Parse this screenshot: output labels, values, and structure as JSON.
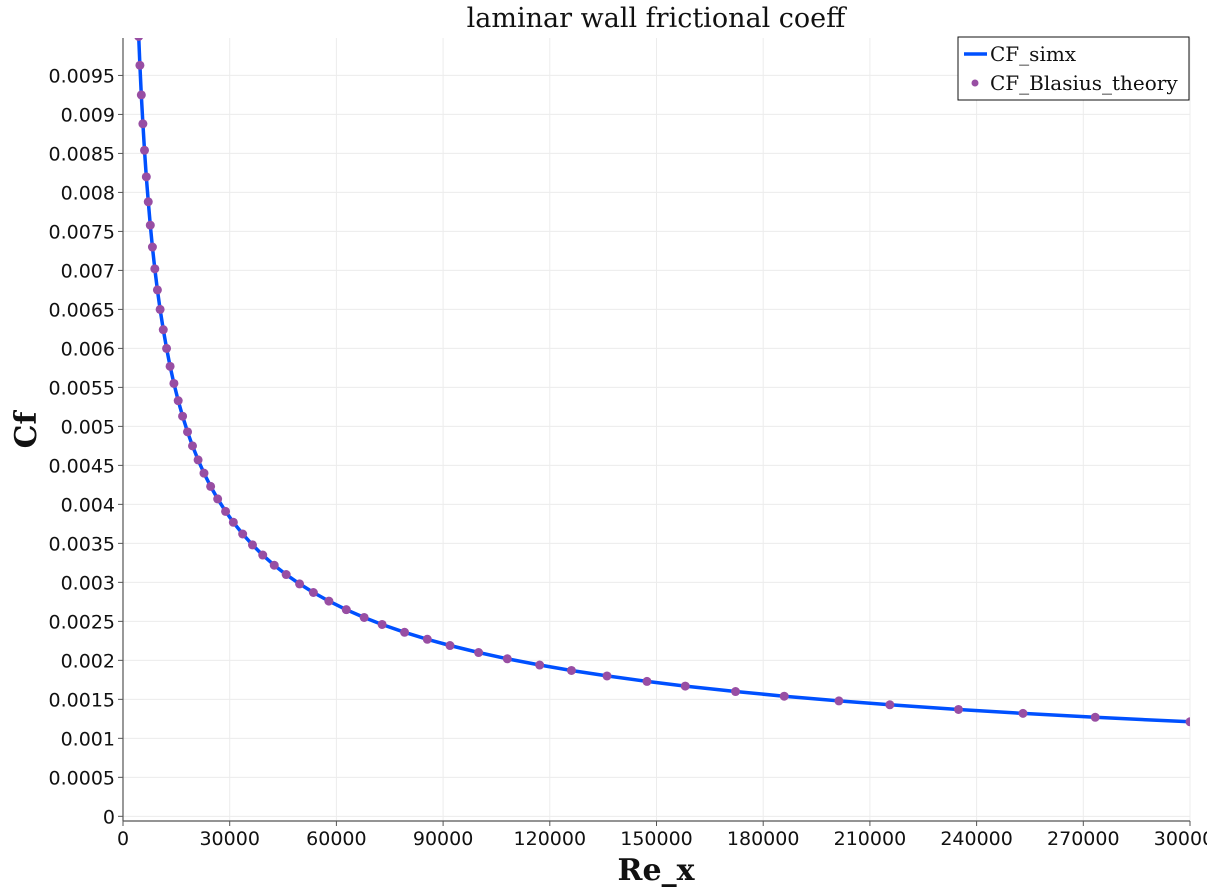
{
  "chart_data": {
    "type": "line",
    "title": "laminar wall frictional coeff",
    "xlabel": "Re_x",
    "ylabel": "Cf",
    "xlim": [
      0,
      300000
    ],
    "ylim": [
      -6e-05,
      0.00998
    ],
    "grid": true,
    "legend_placement": "top-right",
    "x_ticks": [
      "0",
      "30000",
      "60000",
      "90000",
      "120000",
      "150000",
      "180000",
      "210000",
      "240000",
      "270000",
      "300000"
    ],
    "x_tick_values": [
      0,
      30000,
      60000,
      90000,
      120000,
      150000,
      180000,
      210000,
      240000,
      270000,
      300000
    ],
    "y_ticks": [
      "0",
      "0.0005",
      "0.001",
      "0.0015",
      "0.002",
      "0.0025",
      "0.003",
      "0.0035",
      "0.004",
      "0.0045",
      "0.005",
      "0.0055",
      "0.006",
      "0.0065",
      "0.007",
      "0.0075",
      "0.008",
      "0.0085",
      "0.009",
      "0.0095"
    ],
    "y_tick_values": [
      0,
      0.0005,
      0.001,
      0.0015,
      0.002,
      0.0025,
      0.003,
      0.0035,
      0.004,
      0.0045,
      0.005,
      0.0055,
      0.006,
      0.0065,
      0.007,
      0.0075,
      0.008,
      0.0085,
      0.009,
      0.0095
    ],
    "x": [
      4409,
      4754,
      5153,
      5591,
      6045,
      6557,
      7100,
      7674,
      8273,
      8947,
      9677,
      10435,
      11323,
      12247,
      13243,
      14314,
      15520,
      16752,
      18141,
      19541,
      21112,
      22774,
      24640,
      26615,
      28839,
      31022,
      33646,
      36405,
      39287,
      42522,
      45877,
      49649,
      53527,
      57879,
      62785,
      67803,
      72857,
      79163,
      85562,
      91930,
      99976,
      108050,
      117149,
      126082,
      136080,
      147318,
      158086,
      172225,
      185907,
      201287,
      215612,
      234905,
      253039,
      273351,
      300000
    ],
    "series": [
      {
        "name": "CF_simx",
        "style": "line",
        "color": "#0050ff",
        "values": [
          0.01,
          0.00963,
          0.00925,
          0.00888,
          0.00854,
          0.0082,
          0.00788,
          0.00758,
          0.0073,
          0.00702,
          0.00675,
          0.0065,
          0.00624,
          0.006,
          0.00577,
          0.00555,
          0.00533,
          0.00513,
          0.00493,
          0.00475,
          0.00457,
          0.0044,
          0.00423,
          0.00407,
          0.00391,
          0.00377,
          0.00362,
          0.00348,
          0.00335,
          0.00322,
          0.0031,
          0.00298,
          0.00287,
          0.00276,
          0.00265,
          0.00255,
          0.00246,
          0.00236,
          0.00227,
          0.00219,
          0.0021,
          0.00202,
          0.00194,
          0.00187,
          0.0018,
          0.00173,
          0.00167,
          0.0016,
          0.00154,
          0.00148,
          0.00143,
          0.00137,
          0.00132,
          0.00127,
          0.001212
        ]
      },
      {
        "name": "CF_Blasius_theory",
        "style": "points",
        "color": "#984ea3",
        "values": [
          0.01,
          0.00963,
          0.00925,
          0.00888,
          0.00854,
          0.0082,
          0.00788,
          0.00758,
          0.0073,
          0.00702,
          0.00675,
          0.0065,
          0.00624,
          0.006,
          0.00577,
          0.00555,
          0.00533,
          0.00513,
          0.00493,
          0.00475,
          0.00457,
          0.0044,
          0.00423,
          0.00407,
          0.00391,
          0.00377,
          0.00362,
          0.00348,
          0.00335,
          0.00322,
          0.0031,
          0.00298,
          0.00287,
          0.00276,
          0.00265,
          0.00255,
          0.00246,
          0.00236,
          0.00227,
          0.00219,
          0.0021,
          0.00202,
          0.00194,
          0.00187,
          0.0018,
          0.00173,
          0.00167,
          0.0016,
          0.00154,
          0.00148,
          0.00143,
          0.00137,
          0.00132,
          0.00127,
          0.001212
        ]
      }
    ]
  }
}
